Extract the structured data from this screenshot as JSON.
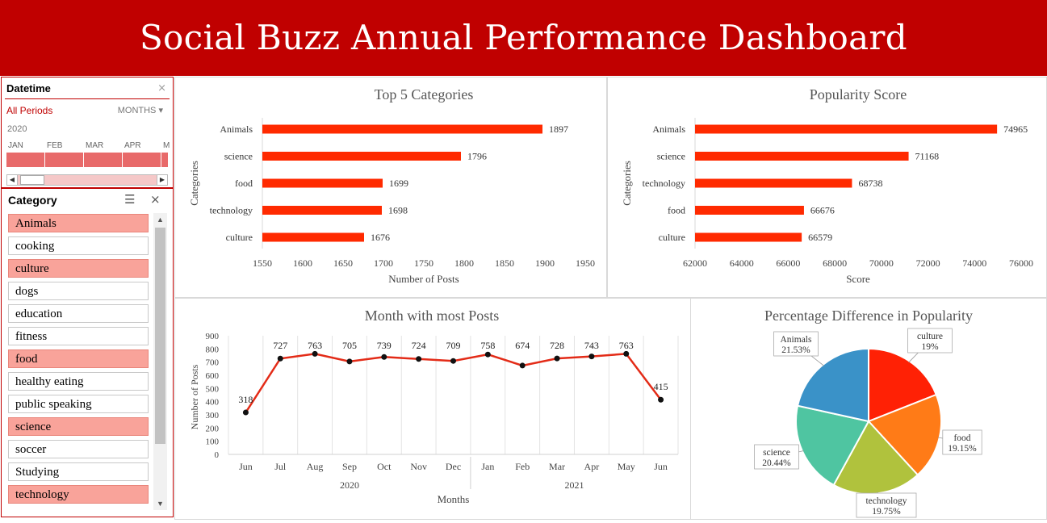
{
  "header": {
    "title": "Social Buzz Annual Performance Dashboard"
  },
  "datetime_slicer": {
    "title": "Datetime",
    "period_label": "All Periods",
    "level": "MONTHS",
    "year": "2020",
    "months": [
      "JAN",
      "FEB",
      "MAR",
      "APR",
      "M"
    ]
  },
  "category_slicer": {
    "title": "Category",
    "items": [
      {
        "label": "Animals",
        "selected": true
      },
      {
        "label": "cooking",
        "selected": false
      },
      {
        "label": "culture",
        "selected": true
      },
      {
        "label": "dogs",
        "selected": false
      },
      {
        "label": "education",
        "selected": false
      },
      {
        "label": "fitness",
        "selected": false
      },
      {
        "label": "food",
        "selected": true
      },
      {
        "label": "healthy eating",
        "selected": false
      },
      {
        "label": "public speaking",
        "selected": false
      },
      {
        "label": "science",
        "selected": true
      },
      {
        "label": "soccer",
        "selected": false
      },
      {
        "label": "Studying",
        "selected": false
      },
      {
        "label": "technology",
        "selected": true
      }
    ]
  },
  "colors": {
    "header": "#c00000",
    "bar": "#ff2a00",
    "line": "#e32b17"
  },
  "chart_data": [
    {
      "type": "bar",
      "title": "Top 5 Categories",
      "xlabel": "Number of Posts",
      "ylabel": "Categories",
      "categories": [
        "Animals",
        "science",
        "food",
        "technology",
        "culture"
      ],
      "values": [
        1897,
        1796,
        1699,
        1698,
        1676
      ],
      "xlim": [
        1550,
        1950
      ],
      "ticks": [
        1550,
        1600,
        1650,
        1700,
        1750,
        1800,
        1850,
        1900,
        1950
      ]
    },
    {
      "type": "bar",
      "title": "Popularity Score",
      "xlabel": "Score",
      "ylabel": "Categories",
      "categories": [
        "Animals",
        "science",
        "technology",
        "food",
        "culture"
      ],
      "values": [
        74965,
        71168,
        68738,
        66676,
        66579
      ],
      "xlim": [
        62000,
        76000
      ],
      "ticks": [
        62000,
        64000,
        66000,
        68000,
        70000,
        72000,
        74000,
        76000
      ]
    },
    {
      "type": "line",
      "title": "Month with most Posts",
      "xlabel": "Months",
      "ylabel": "Number of Posts",
      "x": [
        "Jun",
        "Jul",
        "Aug",
        "Sep",
        "Oct",
        "Nov",
        "Dec",
        "Jan",
        "Feb",
        "Mar",
        "Apr",
        "May",
        "Jun"
      ],
      "years": [
        {
          "label": "2020",
          "start": 0,
          "end": 6
        },
        {
          "label": "2021",
          "start": 7,
          "end": 12
        }
      ],
      "values": [
        318,
        727,
        763,
        705,
        739,
        724,
        709,
        758,
        674,
        728,
        743,
        763,
        415
      ],
      "ylim": [
        0,
        900
      ],
      "ticks": [
        0,
        100,
        200,
        300,
        400,
        500,
        600,
        700,
        800,
        900
      ]
    },
    {
      "type": "pie",
      "title": "Percentage Difference in Popularity",
      "slices": [
        {
          "label": "culture",
          "pct": "19%",
          "value": 19.0,
          "color": "#ff2105"
        },
        {
          "label": "food",
          "pct": "19.15%",
          "value": 19.15,
          "color": "#ff7b17"
        },
        {
          "label": "technology",
          "pct": "19.75%",
          "value": 19.75,
          "color": "#b0c23d"
        },
        {
          "label": "science",
          "pct": "20.44%",
          "value": 20.44,
          "color": "#4fc5a1"
        },
        {
          "label": "Animals",
          "pct": "21.53%",
          "value": 21.53,
          "color": "#3a92c8"
        }
      ]
    }
  ]
}
